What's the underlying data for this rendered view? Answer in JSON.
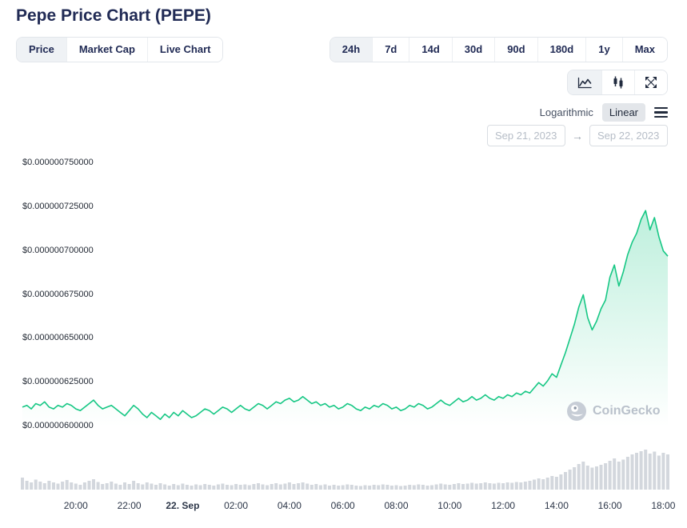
{
  "header": {
    "title": "Pepe Price Chart (PEPE)",
    "view_tabs": [
      {
        "label": "Price",
        "active": true
      },
      {
        "label": "Market Cap",
        "active": false
      },
      {
        "label": "Live Chart",
        "active": false
      }
    ],
    "range_tabs": [
      {
        "label": "24h",
        "active": true
      },
      {
        "label": "7d",
        "active": false
      },
      {
        "label": "14d",
        "active": false
      },
      {
        "label": "30d",
        "active": false
      },
      {
        "label": "90d",
        "active": false
      },
      {
        "label": "180d",
        "active": false
      },
      {
        "label": "1y",
        "active": false
      },
      {
        "label": "Max",
        "active": false
      }
    ],
    "scale_toggle": {
      "options": [
        "Logarithmic",
        "Linear"
      ],
      "selected": "Linear"
    },
    "date_from": "Sep 21, 2023",
    "date_arrow": "→",
    "date_to": "Sep 22, 2023"
  },
  "watermark": {
    "text": "CoinGecko"
  },
  "ui_colors": {
    "selected_bg": "#eff2f5",
    "dark_text": "#212b55"
  },
  "chart_data": {
    "type": "line",
    "title": "Pepe Price Chart (PEPE)",
    "series_name": "PEPE price",
    "value_unit": "USD",
    "value_multiplier": 1e-07,
    "interval_minutes": 10,
    "ylim_scaled": [
      6.0,
      7.5
    ],
    "line_color": "#16c784",
    "volume_color": "#d3d7dd",
    "y_ticks": [
      {
        "label": "$0.000000750000",
        "value": 7.5
      },
      {
        "label": "$0.000000725000",
        "value": 7.25
      },
      {
        "label": "$0.000000700000",
        "value": 7.0
      },
      {
        "label": "$0.000000675000",
        "value": 6.75
      },
      {
        "label": "$0.000000650000",
        "value": 6.5
      },
      {
        "label": "$0.000000625000",
        "value": 6.25
      },
      {
        "label": "$0.000000600000",
        "value": 6.0
      }
    ],
    "x_ticks": [
      {
        "label": "20:00",
        "hour_offset": 2
      },
      {
        "label": "22:00",
        "hour_offset": 4
      },
      {
        "label": "22. Sep",
        "hour_offset": 6,
        "emphasis": true
      },
      {
        "label": "02:00",
        "hour_offset": 8
      },
      {
        "label": "04:00",
        "hour_offset": 10
      },
      {
        "label": "06:00",
        "hour_offset": 12
      },
      {
        "label": "08:00",
        "hour_offset": 14
      },
      {
        "label": "10:00",
        "hour_offset": 16
      },
      {
        "label": "12:00",
        "hour_offset": 18
      },
      {
        "label": "14:00",
        "hour_offset": 20
      },
      {
        "label": "16:00",
        "hour_offset": 22
      },
      {
        "label": "18:00",
        "hour_offset": 24
      }
    ],
    "values": [
      6.11,
      6.12,
      6.1,
      6.13,
      6.12,
      6.14,
      6.11,
      6.1,
      6.12,
      6.11,
      6.13,
      6.12,
      6.1,
      6.09,
      6.11,
      6.13,
      6.15,
      6.12,
      6.1,
      6.11,
      6.12,
      6.1,
      6.08,
      6.06,
      6.09,
      6.12,
      6.1,
      6.07,
      6.05,
      6.08,
      6.06,
      6.04,
      6.07,
      6.05,
      6.08,
      6.06,
      6.09,
      6.07,
      6.05,
      6.06,
      6.08,
      6.1,
      6.09,
      6.07,
      6.09,
      6.11,
      6.1,
      6.08,
      6.1,
      6.12,
      6.1,
      6.09,
      6.11,
      6.13,
      6.12,
      6.1,
      6.12,
      6.14,
      6.13,
      6.15,
      6.16,
      6.14,
      6.15,
      6.17,
      6.15,
      6.13,
      6.14,
      6.12,
      6.13,
      6.11,
      6.12,
      6.1,
      6.11,
      6.13,
      6.12,
      6.1,
      6.09,
      6.11,
      6.1,
      6.12,
      6.11,
      6.13,
      6.12,
      6.1,
      6.11,
      6.09,
      6.1,
      6.12,
      6.11,
      6.13,
      6.12,
      6.1,
      6.11,
      6.13,
      6.15,
      6.13,
      6.12,
      6.14,
      6.16,
      6.14,
      6.15,
      6.17,
      6.15,
      6.16,
      6.18,
      6.16,
      6.15,
      6.17,
      6.16,
      6.18,
      6.17,
      6.19,
      6.18,
      6.2,
      6.19,
      6.22,
      6.25,
      6.23,
      6.26,
      6.3,
      6.28,
      6.35,
      6.42,
      6.5,
      6.58,
      6.68,
      6.75,
      6.62,
      6.55,
      6.6,
      6.67,
      6.72,
      6.85,
      6.92,
      6.8,
      6.88,
      6.98,
      7.05,
      7.1,
      7.18,
      7.23,
      7.12,
      7.19,
      7.08,
      7.0,
      6.97
    ],
    "volume_relative": [
      0.3,
      0.22,
      0.18,
      0.25,
      0.2,
      0.16,
      0.22,
      0.18,
      0.15,
      0.2,
      0.24,
      0.18,
      0.15,
      0.12,
      0.18,
      0.22,
      0.26,
      0.19,
      0.14,
      0.16,
      0.2,
      0.15,
      0.12,
      0.18,
      0.14,
      0.22,
      0.16,
      0.13,
      0.18,
      0.15,
      0.12,
      0.16,
      0.13,
      0.1,
      0.14,
      0.11,
      0.15,
      0.12,
      0.1,
      0.13,
      0.11,
      0.14,
      0.12,
      0.1,
      0.13,
      0.15,
      0.12,
      0.11,
      0.14,
      0.12,
      0.13,
      0.11,
      0.14,
      0.16,
      0.13,
      0.11,
      0.14,
      0.16,
      0.13,
      0.15,
      0.18,
      0.14,
      0.16,
      0.18,
      0.15,
      0.12,
      0.14,
      0.11,
      0.13,
      0.1,
      0.12,
      0.1,
      0.11,
      0.13,
      0.12,
      0.1,
      0.09,
      0.11,
      0.1,
      0.12,
      0.11,
      0.13,
      0.12,
      0.1,
      0.11,
      0.09,
      0.1,
      0.12,
      0.11,
      0.13,
      0.12,
      0.1,
      0.11,
      0.13,
      0.15,
      0.13,
      0.12,
      0.14,
      0.16,
      0.14,
      0.15,
      0.17,
      0.15,
      0.16,
      0.18,
      0.16,
      0.15,
      0.17,
      0.16,
      0.18,
      0.17,
      0.19,
      0.18,
      0.2,
      0.22,
      0.25,
      0.28,
      0.26,
      0.3,
      0.34,
      0.32,
      0.38,
      0.44,
      0.5,
      0.56,
      0.64,
      0.7,
      0.6,
      0.55,
      0.58,
      0.62,
      0.66,
      0.72,
      0.78,
      0.7,
      0.75,
      0.82,
      0.88,
      0.92,
      0.96,
      1.0,
      0.9,
      0.95,
      0.85,
      0.92,
      0.88
    ]
  }
}
